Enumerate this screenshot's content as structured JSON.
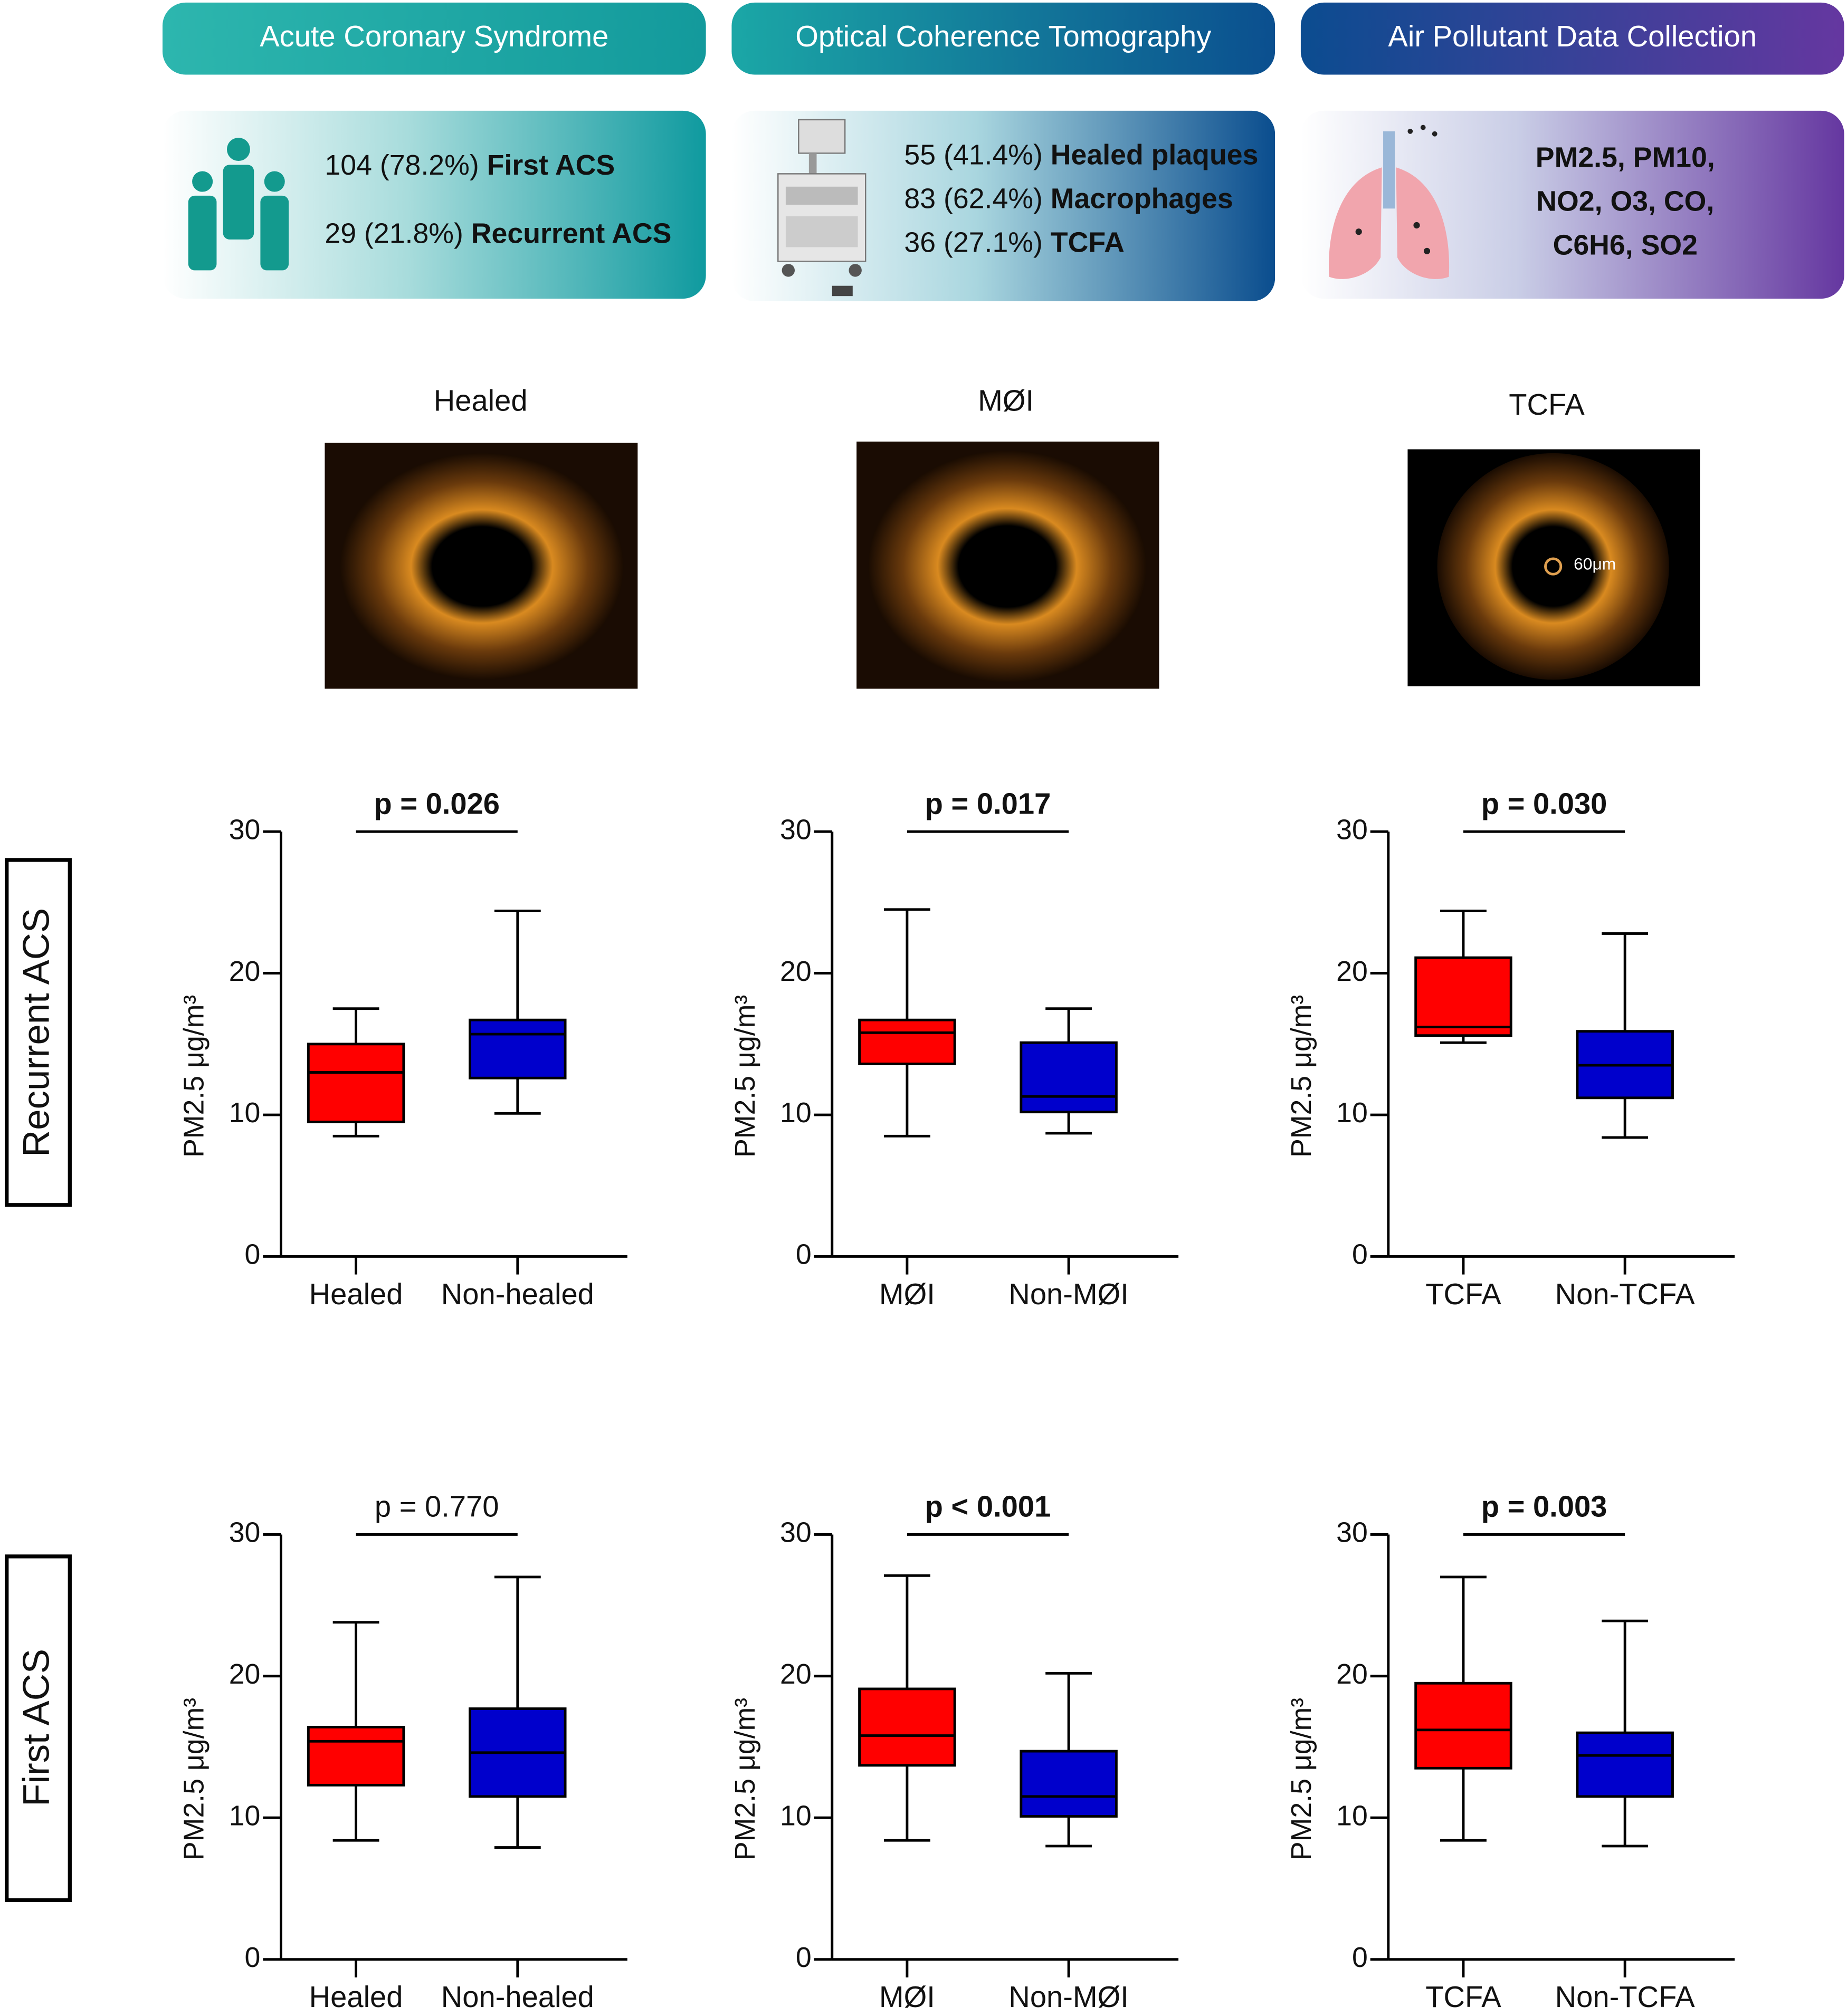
{
  "headers": [
    {
      "title": "Acute Coronary Syndrome",
      "lines": [
        {
          "count": "104 (78.2%)",
          "label": "First ACS"
        },
        {
          "count": "29 (21.8%)",
          "label": "Recurrent ACS"
        }
      ]
    },
    {
      "title": "Optical Coherence Tomography",
      "lines": [
        {
          "count": "55 (41.4%)",
          "label": "Healed plaques"
        },
        {
          "count": "83 (62.4%)",
          "label": "Macrophages"
        },
        {
          "count": "36 (27.1%)",
          "label": "TCFA"
        }
      ]
    },
    {
      "title": "Air Pollutant Data Collection",
      "lines": [
        {
          "count": "",
          "label": "PM2.5,  PM10,"
        },
        {
          "count": "",
          "label": "NO2, O3, CO,"
        },
        {
          "count": "",
          "label": "C6H6, SO2"
        }
      ]
    }
  ],
  "images": [
    {
      "title": "Healed"
    },
    {
      "title": "MØI"
    },
    {
      "title": "TCFA",
      "note": "60μm"
    }
  ],
  "row_labels": [
    "Recurrent ACS",
    "First ACS"
  ],
  "chart_data": [
    {
      "type": "box",
      "title": "p = 0.026",
      "title_bold": true,
      "ylabel": "PM2.5 μg/m³",
      "categories": [
        "Healed",
        "Non-healed"
      ],
      "colors": [
        "#ff0000",
        "#0000cc"
      ],
      "ylim": [
        0,
        30
      ],
      "yticks": [
        0,
        10,
        20,
        30
      ],
      "boxes": [
        {
          "min": 8.5,
          "q1": 9.5,
          "median": 13,
          "q3": 15,
          "max": 17.5
        },
        {
          "min": 10.1,
          "q1": 12.6,
          "median": 15.7,
          "q3": 16.7,
          "max": 24.4
        }
      ]
    },
    {
      "type": "box",
      "title": "p = 0.017",
      "title_bold": true,
      "ylabel": "PM2.5 μg/m³",
      "categories": [
        "MØI",
        "Non-MØI"
      ],
      "colors": [
        "#ff0000",
        "#0000cc"
      ],
      "ylim": [
        0,
        30
      ],
      "yticks": [
        0,
        10,
        20,
        30
      ],
      "boxes": [
        {
          "min": 8.5,
          "q1": 13.6,
          "median": 15.8,
          "q3": 16.7,
          "max": 24.5
        },
        {
          "min": 8.7,
          "q1": 10.2,
          "median": 11.3,
          "q3": 15.1,
          "max": 17.5
        }
      ]
    },
    {
      "type": "box",
      "title": "p = 0.030",
      "title_bold": true,
      "ylabel": "PM2.5 μg/m³",
      "categories": [
        "TCFA",
        "Non-TCFA"
      ],
      "colors": [
        "#ff0000",
        "#0000cc"
      ],
      "ylim": [
        0,
        30
      ],
      "yticks": [
        0,
        10,
        20,
        30
      ],
      "boxes": [
        {
          "min": 15.1,
          "q1": 15.6,
          "median": 16.2,
          "q3": 21.1,
          "max": 24.4
        },
        {
          "min": 8.4,
          "q1": 11.2,
          "median": 13.5,
          "q3": 15.9,
          "max": 22.8
        }
      ]
    },
    {
      "type": "box",
      "title": "p = 0.770",
      "title_bold": false,
      "ylabel": "PM2.5 μg/m³",
      "categories": [
        "Healed",
        "Non-healed"
      ],
      "colors": [
        "#ff0000",
        "#0000cc"
      ],
      "ylim": [
        0,
        30
      ],
      "yticks": [
        0,
        10,
        20,
        30
      ],
      "boxes": [
        {
          "min": 8.4,
          "q1": 12.3,
          "median": 15.4,
          "q3": 16.4,
          "max": 23.8
        },
        {
          "min": 7.9,
          "q1": 11.5,
          "median": 14.6,
          "q3": 17.7,
          "max": 27
        }
      ]
    },
    {
      "type": "box",
      "title": "p < 0.001",
      "title_bold": true,
      "ylabel": "PM2.5 μg/m³",
      "categories": [
        "MØI",
        "Non-MØI"
      ],
      "colors": [
        "#ff0000",
        "#0000cc"
      ],
      "ylim": [
        0,
        30
      ],
      "yticks": [
        0,
        10,
        20,
        30
      ],
      "boxes": [
        {
          "min": 8.4,
          "q1": 13.7,
          "median": 15.8,
          "q3": 19.1,
          "max": 27.1
        },
        {
          "min": 8,
          "q1": 10.1,
          "median": 11.5,
          "q3": 14.7,
          "max": 20.2
        }
      ]
    },
    {
      "type": "box",
      "title": "p = 0.003",
      "title_bold": true,
      "ylabel": "PM2.5 μg/m³",
      "categories": [
        "TCFA",
        "Non-TCFA"
      ],
      "colors": [
        "#ff0000",
        "#0000cc"
      ],
      "ylim": [
        0,
        30
      ],
      "yticks": [
        0,
        10,
        20,
        30
      ],
      "boxes": [
        {
          "min": 8.4,
          "q1": 13.5,
          "median": 16.2,
          "q3": 19.5,
          "max": 27
        },
        {
          "min": 8,
          "q1": 11.5,
          "median": 14.4,
          "q3": 16,
          "max": 23.9
        }
      ]
    }
  ]
}
